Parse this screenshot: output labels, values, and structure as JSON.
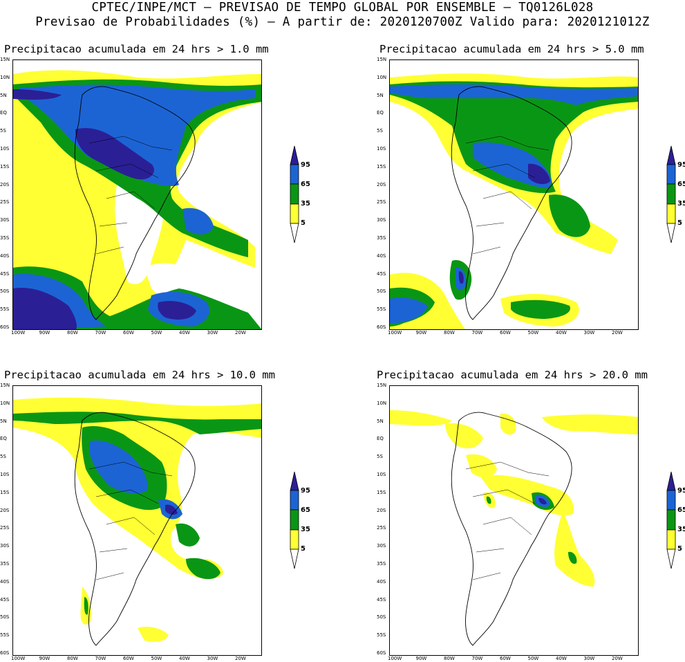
{
  "header": {
    "line1": "CPTEC/INPE/MCT – PREVISAO DE TEMPO GLOBAL POR ENSEMBLE – TQ0126L028",
    "line2": "Previsao de Probabilidades (%) –  A partir de: 2020120700Z  Valido para: 2020121012Z"
  },
  "axes": {
    "lat_ticks": [
      "15N",
      "10N",
      "5N",
      "EQ",
      "5S",
      "10S",
      "15S",
      "20S",
      "25S",
      "30S",
      "35S",
      "40S",
      "45S",
      "50S",
      "55S",
      "60S"
    ],
    "lon_ticks": [
      "100W",
      "90W",
      "80W",
      "70W",
      "60W",
      "50W",
      "40W",
      "30W",
      "20W"
    ]
  },
  "legend": {
    "levels": [
      "95",
      "65",
      "35",
      "5"
    ],
    "colors": {
      "c95": "#2b1f96",
      "c65": "#1c64d4",
      "c35": "#0a9615",
      "c5": "#ffff33"
    }
  },
  "panels": [
    {
      "title": "Precipitacao acumulada em 24 hrs > 1.0 mm",
      "threshold_mm": 1.0
    },
    {
      "title": "Precipitacao acumulada em 24 hrs > 5.0 mm",
      "threshold_mm": 5.0
    },
    {
      "title": "Precipitacao acumulada em 24 hrs > 10.0 mm",
      "threshold_mm": 10.0
    },
    {
      "title": "Precipitacao acumulada em 24 hrs > 20.0 mm",
      "threshold_mm": 20.0
    }
  ]
}
